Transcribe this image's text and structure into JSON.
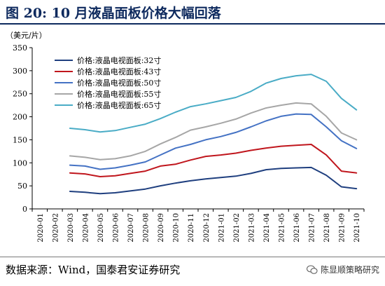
{
  "header": {
    "title": "图 20:  10 月液晶面板价格大幅回落"
  },
  "footer": {
    "source": "数据来源：Wind，国泰君安证券研究",
    "watermark": "陈显顺策略研究",
    "watermark_icon": "wechat-icon"
  },
  "chart_data": {
    "type": "line",
    "ylabel": "（美元/片）",
    "ylim": [
      0,
      350
    ],
    "yticks": [
      0,
      50,
      100,
      150,
      200,
      250,
      300,
      350
    ],
    "grid": false,
    "legend_position": "top-left",
    "x": [
      "2020-01",
      "2020-02",
      "2020-03",
      "2020-04",
      "2020-05",
      "2020-06",
      "2020-07",
      "2020-08",
      "2020-09",
      "2020-10",
      "2020-11",
      "2020-12",
      "2021-01",
      "2021-02",
      "2021-03",
      "2021-04",
      "2021-05",
      "2021-06",
      "2021-07",
      "2021-08",
      "2021-09",
      "2021-10"
    ],
    "series": [
      {
        "name": "价格:液晶电视面板:32寸",
        "color": "#1f3f7f",
        "values": [
          null,
          null,
          38,
          36,
          33,
          35,
          39,
          43,
          50,
          56,
          61,
          65,
          68,
          71,
          77,
          85,
          88,
          89,
          90,
          73,
          48,
          44
        ]
      },
      {
        "name": "价格:液晶电视面板:43寸",
        "color": "#c0161d",
        "values": [
          null,
          null,
          78,
          76,
          70,
          72,
          77,
          82,
          93,
          97,
          106,
          114,
          117,
          121,
          127,
          132,
          136,
          138,
          140,
          117,
          82,
          78
        ]
      },
      {
        "name": "价格:液晶电视面板:50寸",
        "color": "#4472c4",
        "values": [
          null,
          null,
          95,
          93,
          86,
          89,
          95,
          102,
          117,
          132,
          140,
          150,
          157,
          166,
          178,
          191,
          201,
          206,
          205,
          178,
          148,
          131
        ]
      },
      {
        "name": "价格:液晶电视面板:55寸",
        "color": "#a6a6a6",
        "values": [
          null,
          null,
          115,
          112,
          107,
          109,
          115,
          125,
          141,
          155,
          171,
          178,
          186,
          195,
          208,
          219,
          225,
          230,
          228,
          201,
          165,
          150
        ]
      },
      {
        "name": "价格:液晶电视面板:65寸",
        "color": "#4aacc6",
        "values": [
          null,
          null,
          175,
          172,
          167,
          170,
          177,
          184,
          196,
          210,
          222,
          228,
          235,
          242,
          255,
          273,
          283,
          289,
          292,
          277,
          240,
          215
        ]
      }
    ]
  }
}
